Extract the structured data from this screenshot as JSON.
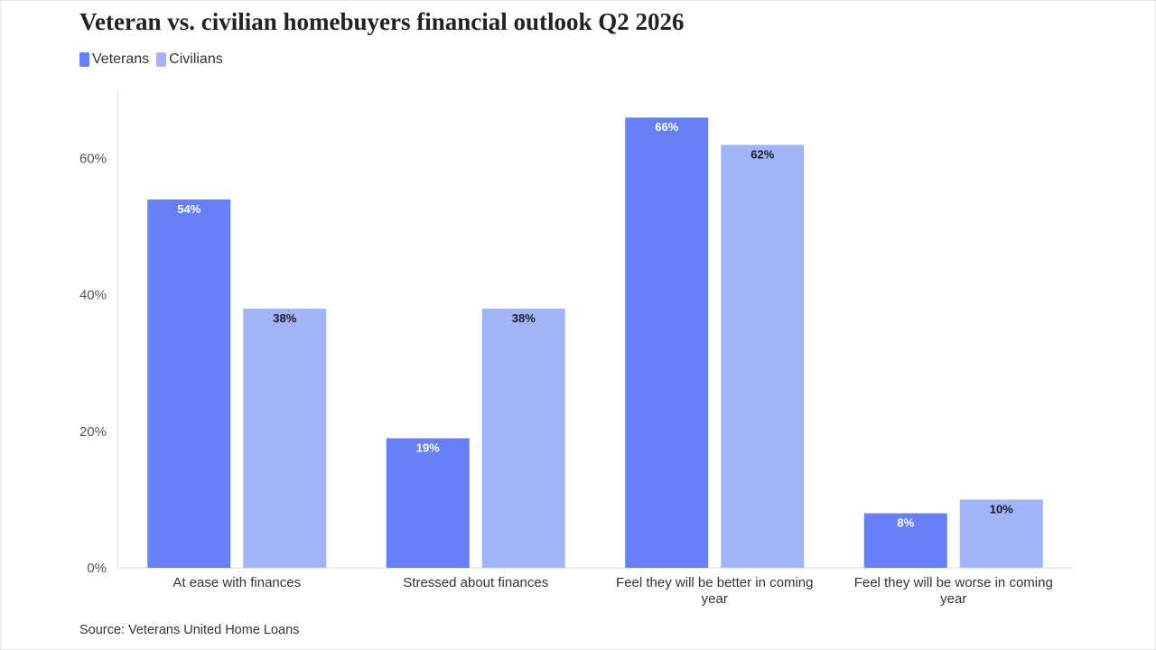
{
  "title": "Veteran vs. civilian homebuyers financial outlook Q2 2026",
  "source": "Source: Veterans United Home Loans",
  "colors": {
    "veterans": "#6880f5",
    "civilians": "#a1b4f8",
    "axis": "#dddddd"
  },
  "chart_data": {
    "type": "bar",
    "title": "Veteran vs. civilian homebuyers financial outlook Q2 2026",
    "xlabel": "",
    "ylabel": "",
    "ylim": [
      0,
      70
    ],
    "yticks": [
      0,
      20,
      40,
      60
    ],
    "yticklabels": [
      "0%",
      "20%",
      "40%",
      "60%"
    ],
    "grid": false,
    "legend": "top-left",
    "categories": [
      [
        "At ease with finances"
      ],
      [
        "Stressed about finances"
      ],
      [
        "Feel they will be better in coming",
        "year"
      ],
      [
        "Feel they will be worse in coming",
        "year"
      ]
    ],
    "series": [
      {
        "name": "Veterans",
        "values": [
          54,
          19,
          66,
          8
        ],
        "labels": [
          "54%",
          "19%",
          "66%",
          "8%"
        ]
      },
      {
        "name": "Civilians",
        "values": [
          38,
          38,
          62,
          10
        ],
        "labels": [
          "38%",
          "38%",
          "62%",
          "10%"
        ]
      }
    ]
  }
}
